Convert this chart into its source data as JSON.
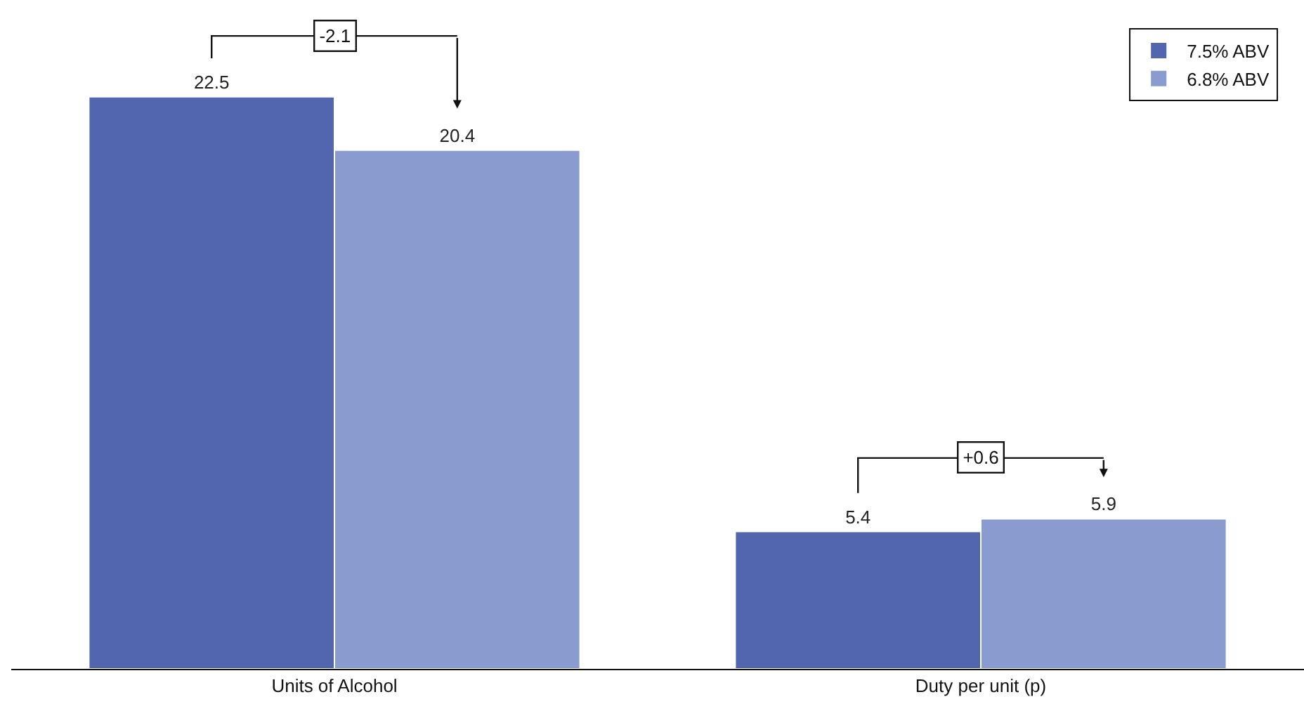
{
  "chart_data": {
    "type": "bar",
    "categories": [
      "Units of Alcohol",
      "Duty per unit (p)"
    ],
    "series": [
      {
        "name": "7.5% ABV",
        "color": "#5266b0",
        "values": [
          22.5,
          5.4
        ]
      },
      {
        "name": "6.8% ABV",
        "color": "#8a9bd0",
        "values": [
          20.4,
          5.9
        ]
      }
    ],
    "data_labels": true,
    "legend": "top right",
    "grid": false,
    "annotations": [
      "-2.1",
      "+0.6"
    ]
  }
}
